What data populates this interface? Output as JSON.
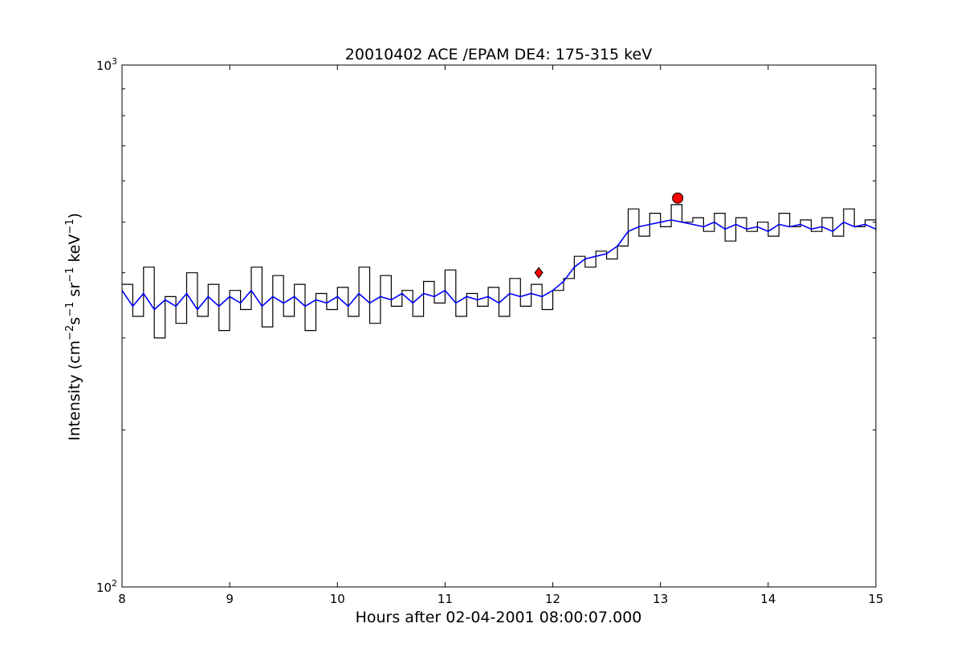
{
  "chart_data": {
    "type": "line",
    "title": "20010402 ACE /EPAM DE4: 175-315 keV",
    "xlabel": "Hours after 02-04-2001 08:00:07.000",
    "ylabel": {
      "parts": [
        {
          "t": "Intensity (cm",
          "sup": false
        },
        {
          "t": "−2",
          "sup": true
        },
        {
          "t": "s",
          "sup": false
        },
        {
          "t": "−1",
          "sup": true
        },
        {
          "t": " sr",
          "sup": false
        },
        {
          "t": "−1",
          "sup": true
        },
        {
          "t": " keV",
          "sup": false
        },
        {
          "t": "−1",
          "sup": true
        },
        {
          "t": ")",
          "sup": false
        }
      ]
    },
    "xlim": [
      8,
      15
    ],
    "ylim": [
      100,
      1000
    ],
    "yscale": "log",
    "x_ticks": [
      8,
      9,
      10,
      11,
      12,
      13,
      14,
      15
    ],
    "y_tick_labels": [
      {
        "value": 100,
        "base": "10",
        "exp": "2"
      },
      {
        "value": 1000,
        "base": "10",
        "exp": "3"
      }
    ],
    "y_minor_ticks": [
      200,
      300,
      400,
      500,
      600,
      700,
      800,
      900
    ],
    "grid": false,
    "legend": "none",
    "series": [
      {
        "role": "raw",
        "color": "#000000",
        "style": "steps",
        "x": [
          8.0,
          8.1,
          8.2,
          8.3,
          8.4,
          8.5,
          8.6,
          8.7,
          8.8,
          8.9,
          9.0,
          9.1,
          9.2,
          9.3,
          9.4,
          9.5,
          9.6,
          9.7,
          9.8,
          9.9,
          10.0,
          10.1,
          10.2,
          10.3,
          10.4,
          10.5,
          10.6,
          10.7,
          10.8,
          10.9,
          11.0,
          11.1,
          11.2,
          11.3,
          11.4,
          11.5,
          11.6,
          11.7,
          11.8,
          11.9,
          12.0,
          12.1,
          12.2,
          12.3,
          12.4,
          12.5,
          12.6,
          12.7,
          12.8,
          12.9,
          13.0,
          13.1,
          13.2,
          13.3,
          13.4,
          13.5,
          13.6,
          13.7,
          13.8,
          13.9,
          14.0,
          14.1,
          14.2,
          14.3,
          14.4,
          14.5,
          14.6,
          14.7,
          14.8,
          14.9,
          15.0
        ],
        "values": [
          380,
          330,
          410,
          300,
          360,
          320,
          400,
          330,
          380,
          310,
          370,
          340,
          410,
          315,
          395,
          330,
          380,
          310,
          365,
          340,
          375,
          330,
          410,
          320,
          395,
          345,
          370,
          330,
          385,
          350,
          405,
          330,
          365,
          345,
          375,
          330,
          390,
          345,
          380,
          340,
          370,
          390,
          430,
          410,
          440,
          425,
          450,
          530,
          470,
          520,
          490,
          540,
          500,
          510,
          480,
          520,
          460,
          510,
          480,
          500,
          470,
          520,
          490,
          505,
          480,
          510,
          470,
          530,
          490,
          505,
          480
        ]
      },
      {
        "role": "smoothed",
        "color": "#0000ff",
        "style": "line",
        "x": [
          8.0,
          8.1,
          8.2,
          8.3,
          8.4,
          8.5,
          8.6,
          8.7,
          8.8,
          8.9,
          9.0,
          9.1,
          9.2,
          9.3,
          9.4,
          9.5,
          9.6,
          9.7,
          9.8,
          9.9,
          10.0,
          10.1,
          10.2,
          10.3,
          10.4,
          10.5,
          10.6,
          10.7,
          10.8,
          10.9,
          11.0,
          11.1,
          11.2,
          11.3,
          11.4,
          11.5,
          11.6,
          11.7,
          11.8,
          11.9,
          12.0,
          12.1,
          12.2,
          12.3,
          12.4,
          12.5,
          12.6,
          12.7,
          12.8,
          12.9,
          13.0,
          13.1,
          13.2,
          13.3,
          13.4,
          13.5,
          13.6,
          13.7,
          13.8,
          13.9,
          14.0,
          14.1,
          14.2,
          14.3,
          14.4,
          14.5,
          14.6,
          14.7,
          14.8,
          14.9,
          15.0
        ],
        "values": [
          370,
          345,
          365,
          340,
          355,
          345,
          365,
          340,
          360,
          345,
          360,
          350,
          370,
          345,
          360,
          350,
          360,
          345,
          355,
          350,
          360,
          345,
          365,
          350,
          360,
          355,
          365,
          350,
          365,
          360,
          370,
          350,
          360,
          355,
          360,
          350,
          365,
          360,
          365,
          360,
          370,
          385,
          410,
          425,
          430,
          435,
          450,
          480,
          490,
          495,
          500,
          505,
          500,
          495,
          490,
          500,
          485,
          495,
          485,
          490,
          480,
          495,
          490,
          495,
          485,
          490,
          480,
          500,
          490,
          495,
          485
        ]
      }
    ],
    "markers": [
      {
        "x": 11.87,
        "y": 400,
        "color": "#ff0000",
        "shape": "diamond"
      },
      {
        "x": 13.16,
        "y": 556,
        "color": "#ff0000",
        "shape": "circle"
      }
    ]
  }
}
